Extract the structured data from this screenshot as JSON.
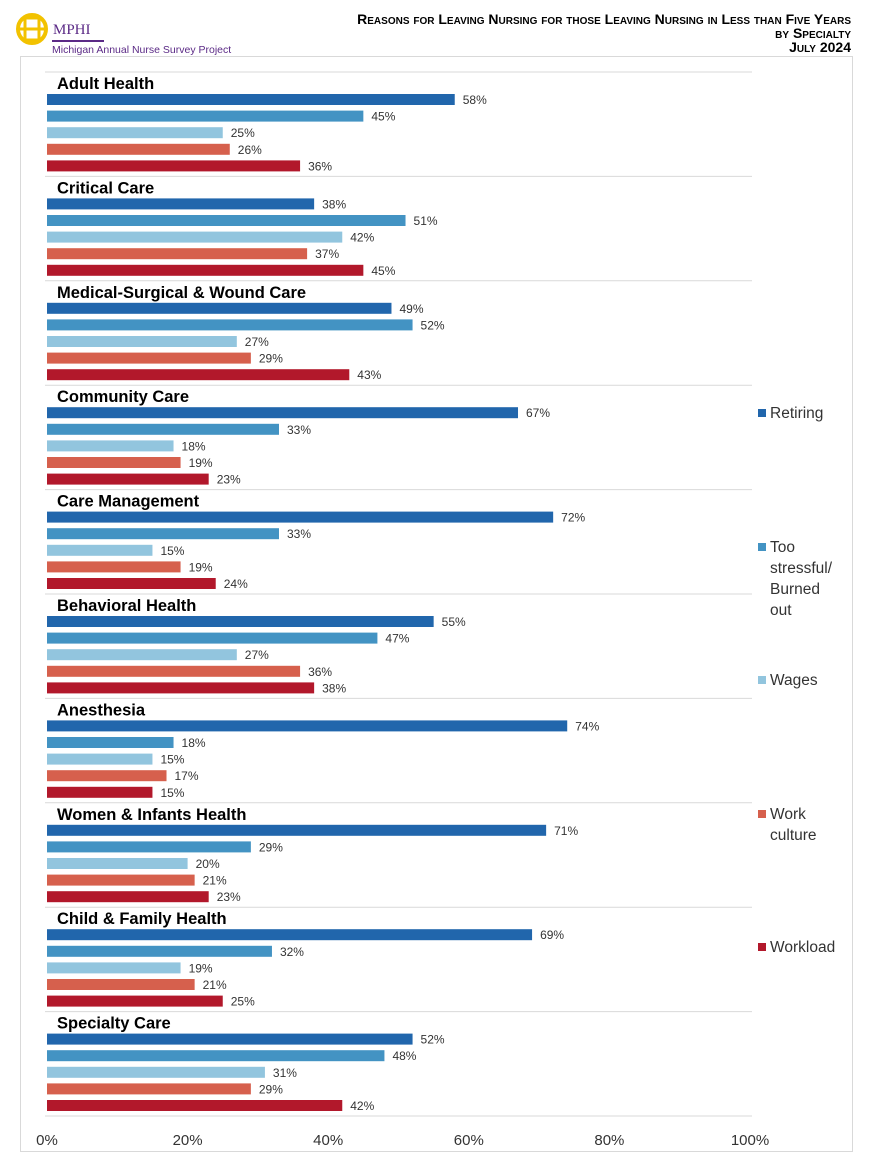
{
  "header": {
    "logo_text": "MPHI",
    "logo_subtitle": "Michigan Annual Nurse Survey Project",
    "title_line1": "Reasons for Leaving Nursing for those Leaving Nursing in Less than Five Years",
    "title_line2": "by Specialty",
    "title_line3": "July 2024"
  },
  "chart_data": {
    "type": "bar",
    "orientation": "horizontal",
    "title": "Reasons for Leaving Nursing for those Leaving Nursing in Less than Five Years by Specialty",
    "categories": [
      "Adult Health",
      "Critical Care",
      "Medical-Surgical & Wound Care",
      "Community Care",
      "Care Management",
      "Behavioral Health",
      "Anesthesia",
      "Women & Infants Health",
      "Child & Family Health",
      "Specialty Care"
    ],
    "series": [
      {
        "name": "Retiring",
        "color": "#2166ac",
        "values": [
          58,
          38,
          49,
          67,
          72,
          55,
          74,
          71,
          69,
          52
        ]
      },
      {
        "name": "Too stressful/ Burned out",
        "color": "#4393c3",
        "values": [
          45,
          51,
          52,
          33,
          33,
          47,
          18,
          29,
          32,
          48
        ]
      },
      {
        "name": "Wages",
        "color": "#92c5de",
        "values": [
          25,
          42,
          27,
          18,
          15,
          27,
          15,
          20,
          19,
          31
        ]
      },
      {
        "name": "Work culture",
        "color": "#d6604d",
        "values": [
          26,
          37,
          29,
          19,
          19,
          36,
          17,
          21,
          21,
          29
        ]
      },
      {
        "name": "Workload",
        "color": "#b2182b",
        "values": [
          36,
          45,
          43,
          23,
          24,
          38,
          15,
          23,
          25,
          42
        ]
      }
    ],
    "xlim": [
      0,
      100
    ],
    "xticks": [
      "0%",
      "20%",
      "40%",
      "60%",
      "80%",
      "100%"
    ],
    "value_suffix": "%",
    "legend_position": "right",
    "grid": false
  }
}
